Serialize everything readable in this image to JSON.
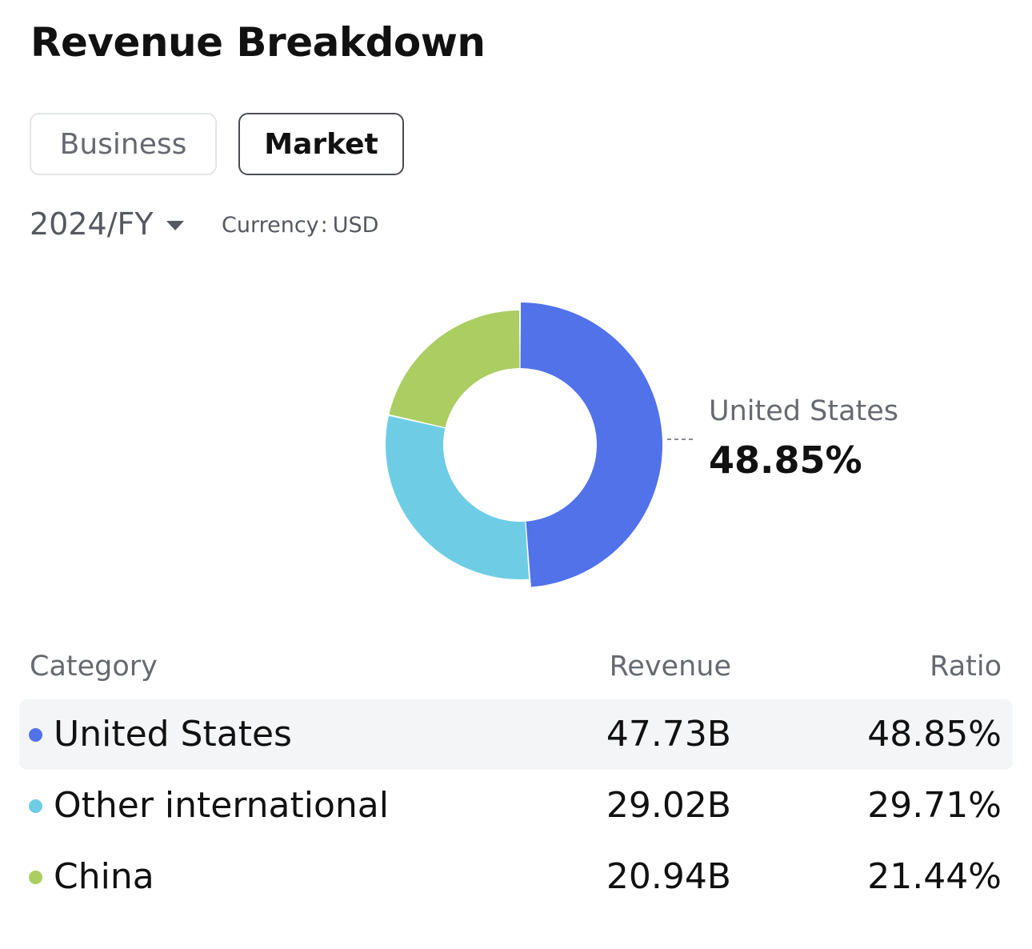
{
  "header": {
    "title": "Revenue Breakdown"
  },
  "tabs": [
    {
      "label": "Business",
      "active": false
    },
    {
      "label": "Market",
      "active": true
    }
  ],
  "filters": {
    "period": "2024/FY",
    "currency_label": "Currency",
    "currency_sep": ":",
    "currency_value": "USD"
  },
  "callout": {
    "label": "United States",
    "value": "48.85%"
  },
  "table": {
    "headers": {
      "category": "Category",
      "revenue": "Revenue",
      "ratio": "Ratio"
    },
    "rows": [
      {
        "category": "United States",
        "revenue": "47.73B",
        "ratio": "48.85%",
        "color": "#5272ea",
        "highlighted": true
      },
      {
        "category": "Other international",
        "revenue": "29.02B",
        "ratio": "29.71%",
        "color": "#6ecde5",
        "highlighted": false
      },
      {
        "category": "China",
        "revenue": "20.94B",
        "ratio": "21.44%",
        "color": "#abcd62",
        "highlighted": false
      }
    ]
  },
  "chart_data": {
    "type": "pie",
    "categories": [
      "United States",
      "Other international",
      "China"
    ],
    "values": [
      48.85,
      29.71,
      21.44
    ],
    "colors": [
      "#5272ea",
      "#6ecde5",
      "#abcd62"
    ],
    "highlighted": "United States"
  }
}
